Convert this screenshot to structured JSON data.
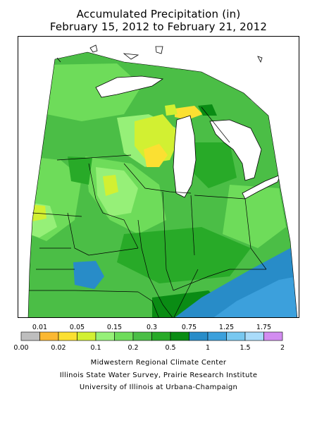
{
  "title": {
    "line1": "Accumulated Precipitation (in)",
    "line2": "February 15, 2012 to February 21, 2012"
  },
  "legend": {
    "bins": [
      {
        "color": "#bebebe"
      },
      {
        "color": "#fbb832"
      },
      {
        "color": "#fbe032"
      },
      {
        "color": "#d2f032"
      },
      {
        "color": "#96f078"
      },
      {
        "color": "#6edc5a"
      },
      {
        "color": "#4bbe46"
      },
      {
        "color": "#28aa28"
      },
      {
        "color": "#0a8c14"
      },
      {
        "color": "#288cc8"
      },
      {
        "color": "#3ca0dc"
      },
      {
        "color": "#78c8f0"
      },
      {
        "color": "#aadcfa"
      },
      {
        "color": "#d28cf0"
      }
    ],
    "top_labels": [
      "0.01",
      "0.05",
      "0.15",
      "0.3",
      "0.75",
      "1.25",
      "1.75"
    ],
    "bottom_labels": [
      "0.00",
      "0.02",
      "0.1",
      "0.2",
      "0.5",
      "1",
      "1.5",
      "2"
    ]
  },
  "credits": {
    "line1": "Midwestern Regional Climate Center",
    "line2": "Illinois State Water Survey, Prairie Research Institute",
    "line3": "University of Illinois at Urbana-Champaign"
  },
  "map_colors": {
    "lake": "#ffffff",
    "green_base": "#4bbe46",
    "green_light": "#6edc5a",
    "green_pale": "#96f078",
    "green_dark": "#28aa28",
    "green_darkest": "#0a8c14",
    "yellow_green": "#d2f032",
    "yellow": "#fbe032",
    "blue": "#288cc8",
    "blue_light": "#3ca0dc"
  }
}
